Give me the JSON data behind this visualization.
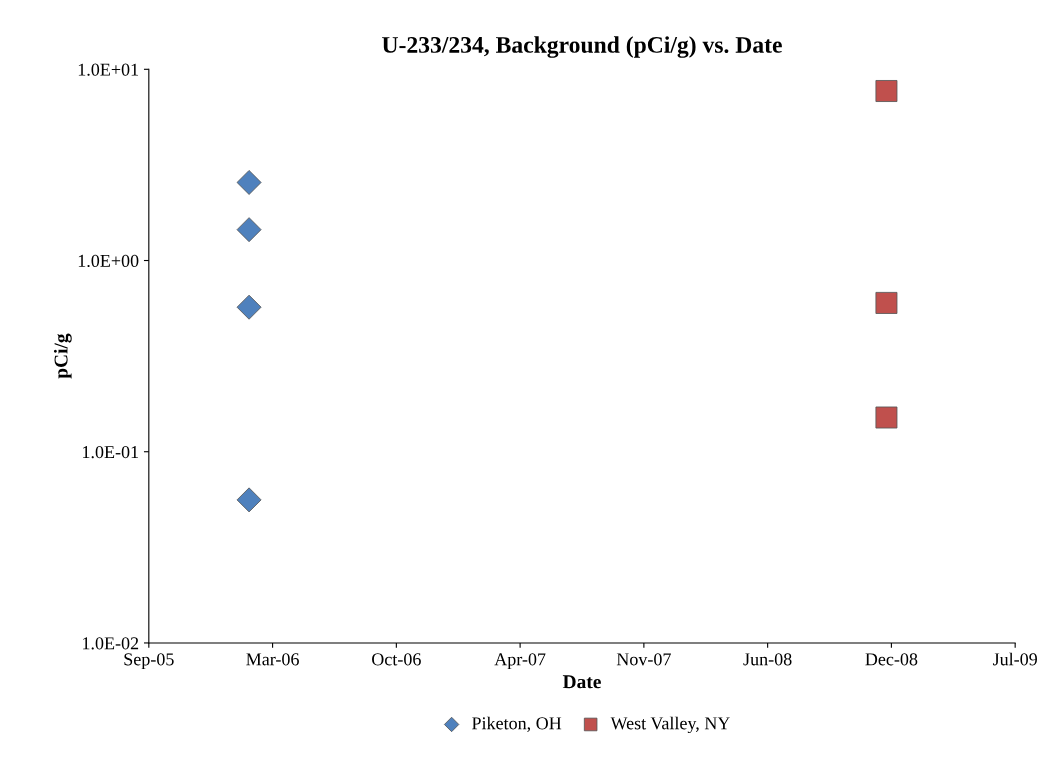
{
  "chart_data": {
    "type": "scatter",
    "title": "U-233/234, Background (pCi/g) vs. Date",
    "xlabel": "Date",
    "ylabel": "pCi/g",
    "series": [
      {
        "name": "Piketon, OH",
        "color": "#4f81bd",
        "marker": "diamond",
        "x": [
          "2006-02-14",
          "2006-02-14",
          "2006-02-14",
          "2006-02-14"
        ],
        "values": [
          2.56,
          1.45,
          0.57,
          0.056
        ]
      },
      {
        "name": "West Valley, NY",
        "color": "#c0504d",
        "marker": "square",
        "x": [
          "2008-12-10",
          "2008-12-10",
          "2008-12-10"
        ],
        "values": [
          7.7,
          0.6,
          0.151
        ]
      }
    ],
    "log": "y",
    "ylim": [
      0.01,
      10
    ],
    "yticks": [
      {
        "value": 0.01,
        "label": "1.0E-02"
      },
      {
        "value": 0.1,
        "label": "1.0E-01"
      },
      {
        "value": 1,
        "label": "1.0E+00"
      },
      {
        "value": 10,
        "label": "1.0E+01"
      }
    ],
    "xlim": [
      "2005-09-05",
      "2009-07-06"
    ],
    "xticks": [
      {
        "value": "2005-09-05",
        "label": "Sep-05"
      },
      {
        "value": "2006-03-24",
        "label": "Mar-06"
      },
      {
        "value": "2006-10-10",
        "label": "Oct-06"
      },
      {
        "value": "2007-04-28",
        "label": "Apr-07"
      },
      {
        "value": "2007-11-14",
        "label": "Nov-07"
      },
      {
        "value": "2008-06-01",
        "label": "Jun-08"
      },
      {
        "value": "2008-12-18",
        "label": "Dec-08"
      },
      {
        "value": "2009-07-06",
        "label": "Jul-09"
      }
    ],
    "grid": false,
    "legend": "bottom"
  }
}
